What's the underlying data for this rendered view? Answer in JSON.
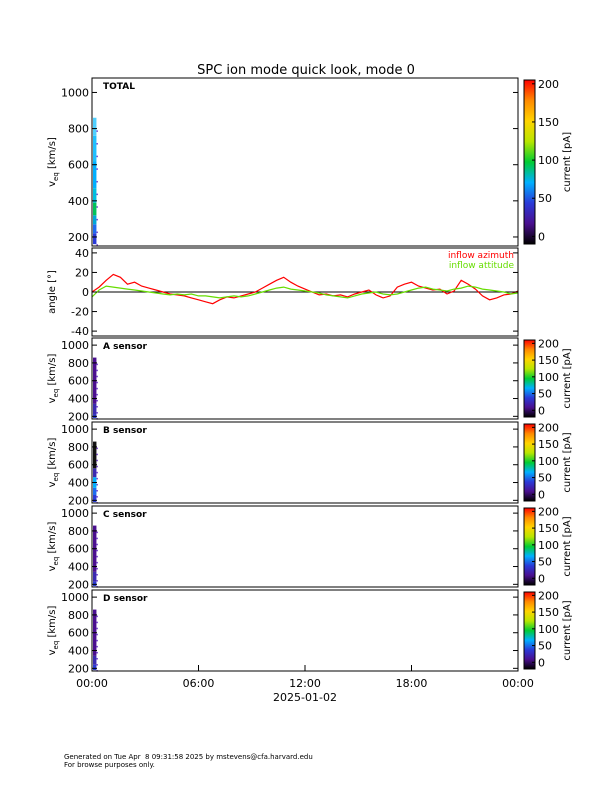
{
  "chart_data": {
    "type": "heatmap",
    "title": "SPC ion mode quick look, mode 0",
    "x": {
      "ticks": [
        "00:00",
        "06:00",
        "12:00",
        "18:00",
        "00:00"
      ],
      "date_label": "2025-01-02",
      "range_hours": [
        0,
        24
      ]
    },
    "colorbar": {
      "label": "current [pA]",
      "stops": [
        "#000000",
        "#4a0f8f",
        "#2a3ad8",
        "#00b0ff",
        "#00cc33",
        "#b8e600",
        "#ffd400",
        "#ff8a00",
        "#ff0000"
      ]
    },
    "panels": [
      {
        "kind": "heatmap",
        "label": "TOTAL",
        "ylabel_main": "v",
        "ylabel_sub": "eq",
        "ylabel_unit": " [km/s]",
        "yticks": [
          200,
          400,
          600,
          800,
          1000
        ],
        "ylim": [
          150,
          1080
        ],
        "cbar_ticks": [
          0,
          50,
          100,
          150,
          200
        ],
        "cbar_lim": [
          -10,
          205
        ],
        "data_hours": [
          0,
          0.25
        ],
        "cells": [
          {
            "v0": 160,
            "v1": 220,
            "c": "#2a3ad8"
          },
          {
            "v0": 220,
            "v1": 270,
            "c": "#1e6cf0"
          },
          {
            "v0": 270,
            "v1": 320,
            "c": "#00a8d8"
          },
          {
            "v0": 320,
            "v1": 390,
            "c": "#00c35a"
          },
          {
            "v0": 390,
            "v1": 470,
            "c": "#00bfe0"
          },
          {
            "v0": 470,
            "v1": 620,
            "c": "#00b0ff"
          },
          {
            "v0": 620,
            "v1": 760,
            "c": "#1fc0ff"
          },
          {
            "v0": 760,
            "v1": 860,
            "c": "#4fd0ff"
          }
        ]
      },
      {
        "kind": "line",
        "ylabel": "angle [°]",
        "yticks": [
          -40,
          -20,
          0,
          20,
          40
        ],
        "ylim": [
          -45,
          45
        ],
        "series": [
          {
            "name": "inflow azimuth",
            "color": "#ff0000",
            "values": [
              0,
              5,
              12,
              18,
              15,
              8,
              10,
              6,
              4,
              2,
              0,
              -2,
              -3,
              -4,
              -6,
              -8,
              -10,
              -12,
              -8,
              -5,
              -6,
              -4,
              -2,
              0,
              4,
              8,
              12,
              15,
              10,
              6,
              3,
              0,
              -3,
              -2,
              -4,
              -3,
              -5,
              -2,
              0,
              2,
              -3,
              -6,
              -4,
              5,
              8,
              10,
              6,
              4,
              2,
              3,
              -2,
              1,
              12,
              8,
              3,
              -4,
              -8,
              -6,
              -3,
              -2,
              1
            ]
          },
          {
            "name": "inflow attitude",
            "color": "#66dd00",
            "values": [
              -5,
              2,
              6,
              5,
              4,
              3,
              2,
              1,
              0,
              -1,
              -2,
              -3,
              -2,
              -3,
              -2,
              -4,
              -4,
              -5,
              -6,
              -5,
              -4,
              -5,
              -4,
              -2,
              0,
              2,
              4,
              5,
              3,
              2,
              1,
              0,
              -1,
              -3,
              -4,
              -5,
              -6,
              -4,
              -2,
              -1,
              0,
              -2,
              -3,
              -2,
              0,
              2,
              4,
              5,
              3,
              2,
              1,
              3,
              4,
              6,
              5,
              3,
              2,
              1,
              0,
              -2,
              -1
            ]
          }
        ]
      },
      {
        "kind": "heatmap",
        "label": "A sensor",
        "ylabel_main": "v",
        "ylabel_sub": "eq",
        "ylabel_unit": " [km/s]",
        "yticks": [
          200,
          400,
          600,
          800,
          1000
        ],
        "ylim": [
          170,
          1080
        ],
        "cbar_ticks": [
          0,
          50,
          100,
          150,
          200
        ],
        "cbar_lim": [
          -20,
          210
        ],
        "data_hours": [
          0,
          0.25
        ],
        "cells": [
          {
            "v0": 180,
            "v1": 220,
            "c": "#2a3ad8"
          },
          {
            "v0": 220,
            "v1": 340,
            "c": "#3a2ab0"
          },
          {
            "v0": 340,
            "v1": 860,
            "c": "#4a0f8f"
          }
        ]
      },
      {
        "kind": "heatmap",
        "label": "B sensor",
        "ylabel_main": "v",
        "ylabel_sub": "eq",
        "ylabel_unit": " [km/s]",
        "yticks": [
          200,
          400,
          600,
          800,
          1000
        ],
        "ylim": [
          170,
          1080
        ],
        "cbar_ticks": [
          0,
          50,
          100,
          150,
          200
        ],
        "cbar_lim": [
          -20,
          210
        ],
        "data_hours": [
          0,
          0.25
        ],
        "cells": [
          {
            "v0": 180,
            "v1": 260,
            "c": "#2a3ad8"
          },
          {
            "v0": 260,
            "v1": 340,
            "c": "#1e6cf0"
          },
          {
            "v0": 340,
            "v1": 460,
            "c": "#00b0ff"
          },
          {
            "v0": 460,
            "v1": 560,
            "c": "#3a2ab0"
          },
          {
            "v0": 560,
            "v1": 860,
            "c": "#111111"
          }
        ]
      },
      {
        "kind": "heatmap",
        "label": "C sensor",
        "ylabel_main": "v",
        "ylabel_sub": "eq",
        "ylabel_unit": " [km/s]",
        "yticks": [
          200,
          400,
          600,
          800,
          1000
        ],
        "ylim": [
          170,
          1080
        ],
        "cbar_ticks": [
          0,
          50,
          100,
          150,
          200
        ],
        "cbar_lim": [
          -20,
          210
        ],
        "data_hours": [
          0,
          0.25
        ],
        "cells": [
          {
            "v0": 180,
            "v1": 230,
            "c": "#2a3ad8"
          },
          {
            "v0": 230,
            "v1": 340,
            "c": "#3a2ab0"
          },
          {
            "v0": 340,
            "v1": 860,
            "c": "#4a0f8f"
          }
        ]
      },
      {
        "kind": "heatmap",
        "label": "D sensor",
        "ylabel_main": "v",
        "ylabel_sub": "eq",
        "ylabel_unit": " [km/s]",
        "yticks": [
          200,
          400,
          600,
          800,
          1000
        ],
        "ylim": [
          170,
          1080
        ],
        "cbar_ticks": [
          0,
          50,
          100,
          150,
          200
        ],
        "cbar_lim": [
          -20,
          210
        ],
        "data_hours": [
          0,
          0.25
        ],
        "cells": [
          {
            "v0": 180,
            "v1": 240,
            "c": "#2a3ad8"
          },
          {
            "v0": 240,
            "v1": 340,
            "c": "#3a2ab0"
          },
          {
            "v0": 340,
            "v1": 860,
            "c": "#4a0f8f"
          }
        ]
      }
    ]
  },
  "footer": {
    "line1": "Generated on Tue Apr  8 09:31:58 2025 by mstevens@cfa.harvard.edu",
    "line2": "For browse purposes only."
  }
}
